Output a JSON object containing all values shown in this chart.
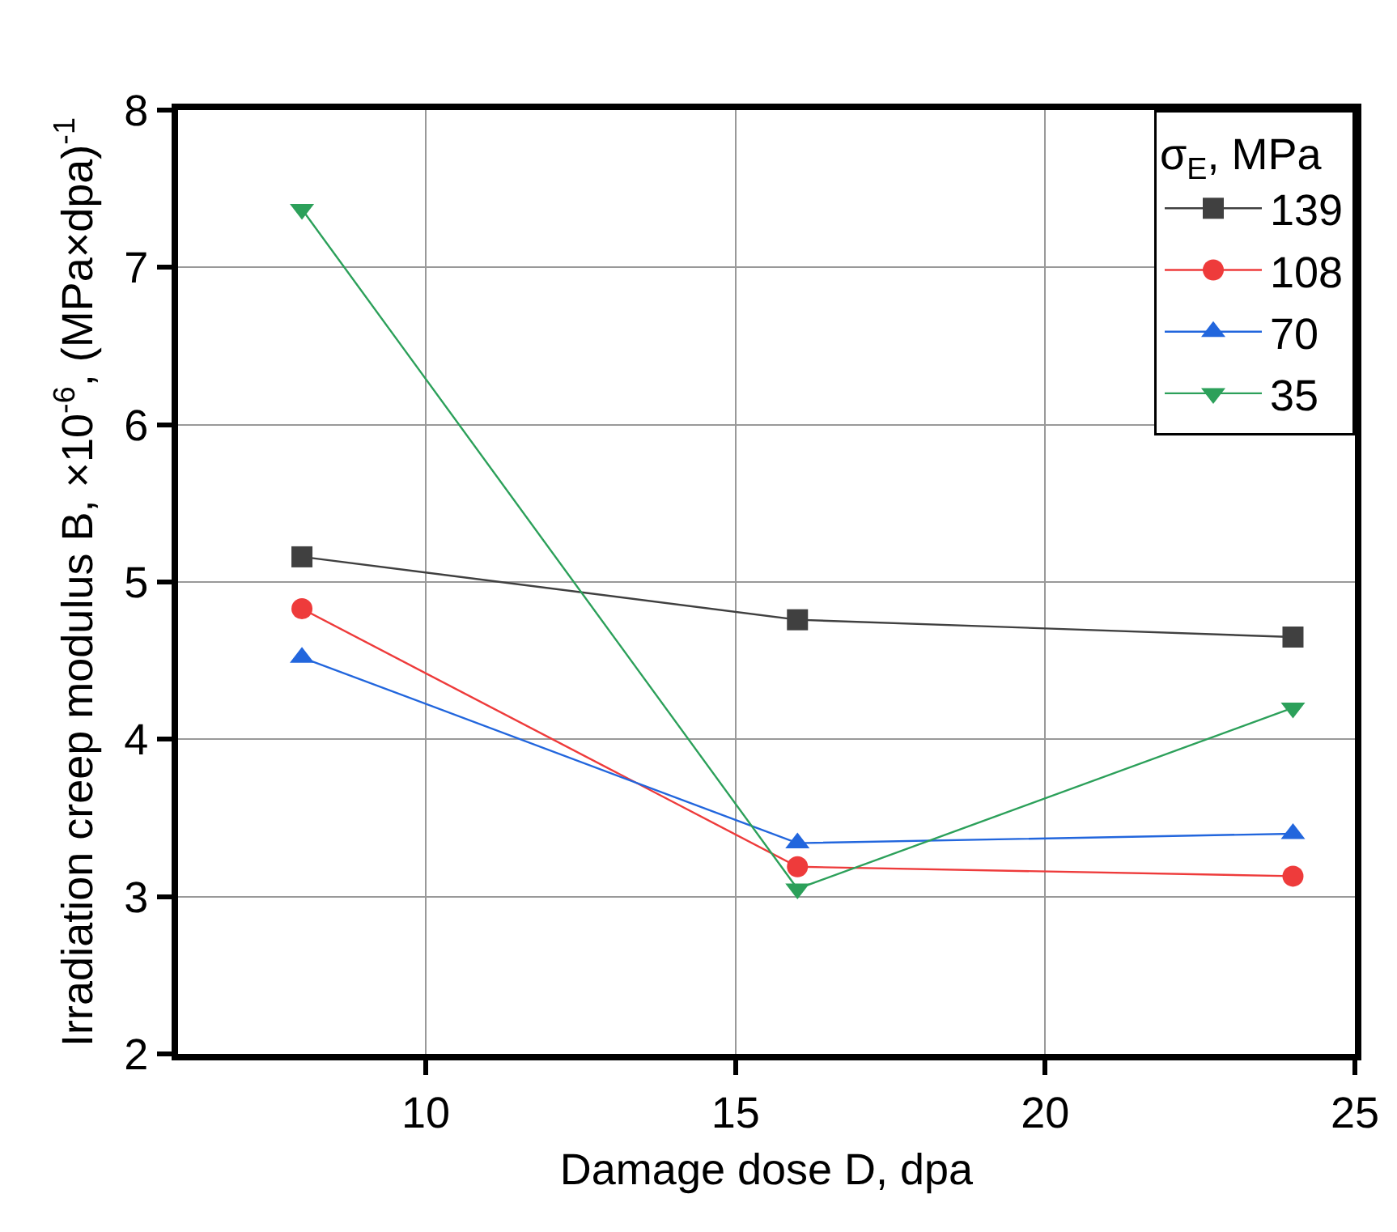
{
  "chart_data": {
    "type": "line",
    "xlabel": "Damage dose D, dpa",
    "ylabel": "Irradiation creep modulus B, ×10$^{-6}$, (MPa×dpa)$^{-1}$",
    "legend_title": "σ$_{E}$, MPa",
    "x": [
      8,
      16,
      24
    ],
    "series": [
      {
        "name": "139",
        "color": "#404040",
        "marker": "square",
        "values": [
          5.16,
          4.76,
          4.65
        ]
      },
      {
        "name": "108",
        "color": "#ee3b3b",
        "marker": "circle",
        "values": [
          4.83,
          3.19,
          3.13
        ]
      },
      {
        "name": "70",
        "color": "#2266dd",
        "marker": "triangle",
        "values": [
          4.52,
          3.34,
          3.4
        ]
      },
      {
        "name": "35",
        "color": "#2ca05a",
        "marker": "triangle-down",
        "values": [
          7.37,
          3.05,
          4.2
        ]
      }
    ],
    "xlim": [
      6,
      25
    ],
    "xticks": [
      10,
      15,
      20,
      25
    ],
    "ylim": [
      2,
      8
    ],
    "yticks": [
      2,
      3,
      4,
      5,
      6,
      7,
      8
    ],
    "grid": true,
    "legend": "top right",
    "line_style": "solid"
  }
}
